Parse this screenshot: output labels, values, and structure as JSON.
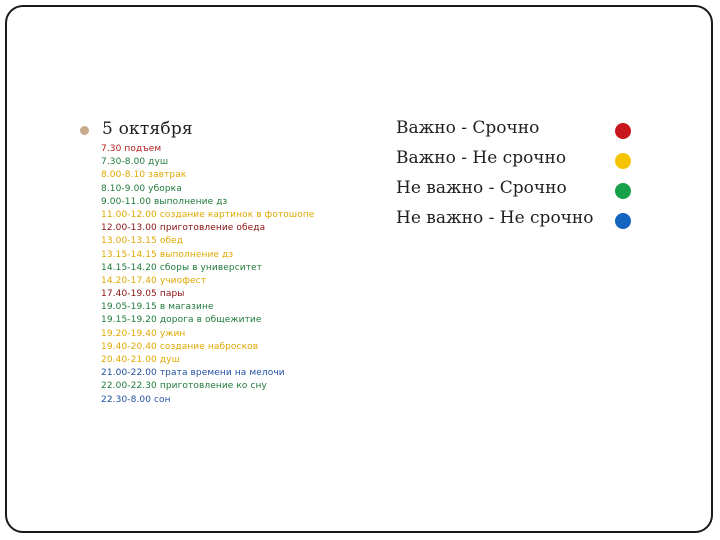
{
  "slide": {
    "title": "5 октября",
    "schedule": [
      {
        "text": "7.30 подъем",
        "color": "#b01c1c"
      },
      {
        "text": "7.30-8.00 душ",
        "color": "#1f7a3a"
      },
      {
        "text": "8.00-8.10 завтрак",
        "color": "#e0a800"
      },
      {
        "text": "8.10-9.00 уборка",
        "color": "#1f7a3a"
      },
      {
        "text": "9.00-11.00 выполнение дз",
        "color": "#1f7a3a"
      },
      {
        "text": "11.00-12.00 создание картинок в фотошопе",
        "color": "#e0a800"
      },
      {
        "text": "12.00-13.00 приготовление обеда",
        "color": "#8a1010"
      },
      {
        "text": "13.00-13.15 обед",
        "color": "#e0a800"
      },
      {
        "text": "13.15-14.15 выполнение дз",
        "color": "#e0a800"
      },
      {
        "text": "14.15-14.20 сборы в университет",
        "color": "#1f7a3a"
      },
      {
        "text": "14.20-17.40 учиофест",
        "color": "#e0a800"
      },
      {
        "text": "17.40-19.05 пары",
        "color": "#8a1010"
      },
      {
        "text": "19.05-19.15 в магазине",
        "color": "#1f7a3a"
      },
      {
        "text": "19.15-19.20 дорога в общежитие",
        "color": "#1f7a3a"
      },
      {
        "text": "19.20-19.40 ужин",
        "color": "#e0a800"
      },
      {
        "text": "19.40-20.40 создание набросков",
        "color": "#e0a800"
      },
      {
        "text": "20.40-21.00 душ",
        "color": "#e0a800"
      },
      {
        "text": "21.00-22.00 трата времени на мелочи",
        "color": "#1f4fa0"
      },
      {
        "text": "22.00-22.30 приготовление ко сну",
        "color": "#1f7a3a"
      },
      {
        "text": "22.30-8.00 сон",
        "color": "#1f4fa0"
      }
    ],
    "legend": [
      {
        "label": "Важно - Срочно",
        "color": "#c8161d"
      },
      {
        "label": "Важно - Не срочно",
        "color": "#f5c400"
      },
      {
        "label": "Не важно - Срочно",
        "color": "#17a24a"
      },
      {
        "label": "Не важно - Не срочно",
        "color": "#1565c0"
      }
    ]
  }
}
